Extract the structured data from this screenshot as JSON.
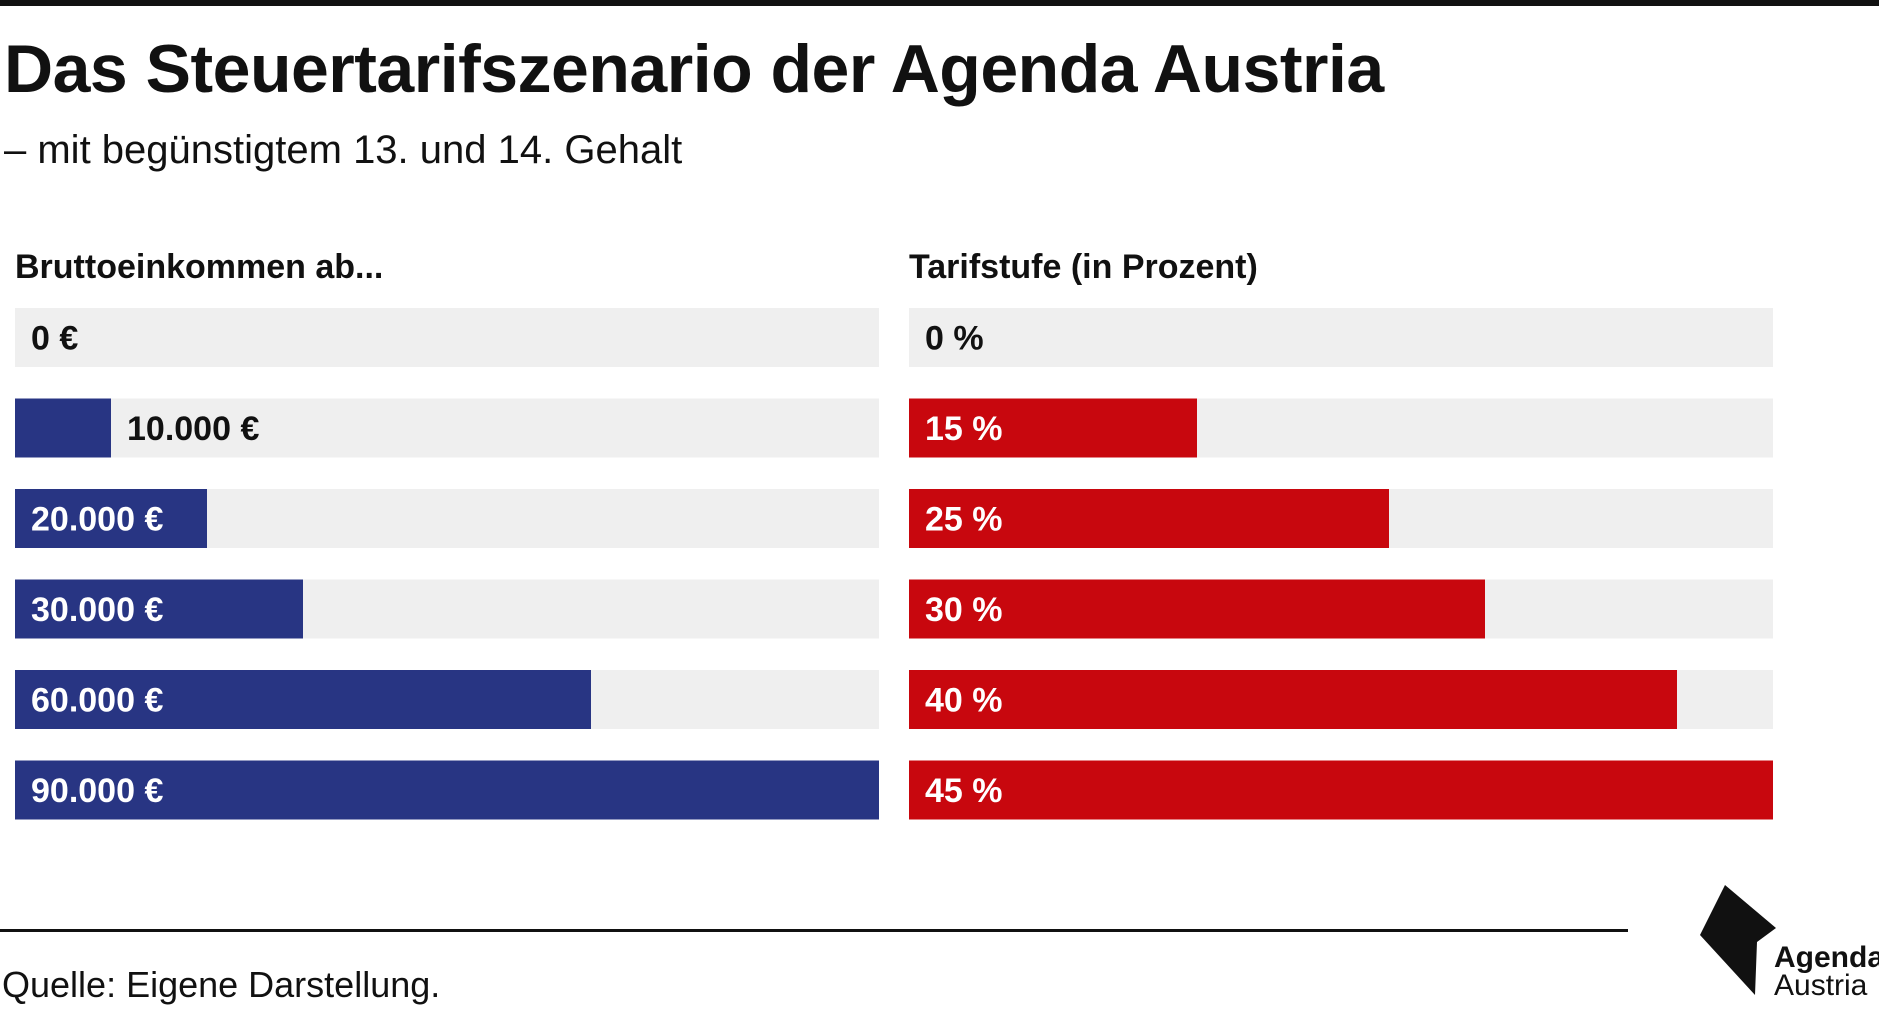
{
  "header": {
    "title": "Das Steuertarifszenario der Agenda Austria",
    "subtitle": "– mit begünstigtem 13. und 14. Gehalt"
  },
  "colors": {
    "income_bar": "#283583",
    "rate_bar": "#c8070e",
    "track": "#efefef",
    "text_dark": "#111111",
    "text_light": "#ffffff"
  },
  "chart_data": {
    "type": "bar",
    "orientation": "horizontal",
    "title": "Das Steuertarifszenario der Agenda Austria",
    "subtitle": "– mit begünstigtem 13. und 14. Gehalt",
    "panels": [
      {
        "header": "Bruttoeinkommen ab...",
        "unit": "€",
        "max": 90000,
        "values": [
          0,
          10000,
          20000,
          30000,
          60000,
          90000
        ],
        "labels": [
          "0 €",
          "10.000 €",
          "20.000 €",
          "30.000 €",
          "60.000 €",
          "90.000 €"
        ]
      },
      {
        "header": "Tarifstufe (in Prozent)",
        "unit": "%",
        "max": 45,
        "values": [
          0,
          15,
          25,
          30,
          40,
          45
        ],
        "labels": [
          "0 %",
          "15 %",
          "25 %",
          "30 %",
          "40 %",
          "45 %"
        ]
      }
    ],
    "grid": false,
    "legend": "none"
  },
  "footer": {
    "source": "Quelle: Eigene Darstellung.",
    "logo_line1": "Agenda",
    "logo_line2": "Austria"
  }
}
